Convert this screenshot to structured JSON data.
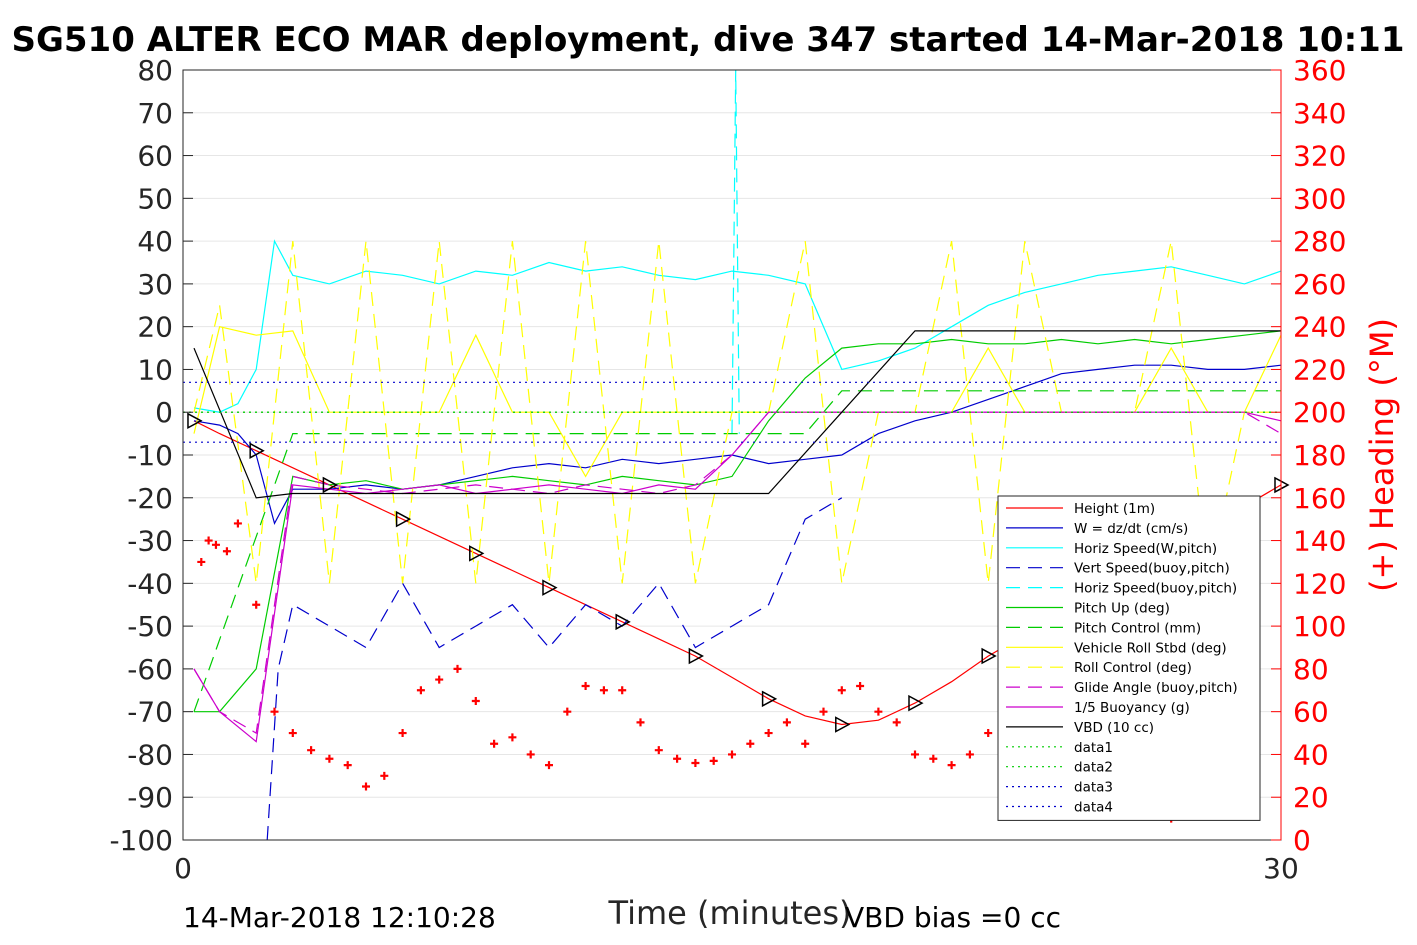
{
  "chart_data": {
    "type": "line",
    "title": "SG510 ALTER ECO MAR deployment, dive 347 started 14-Mar-2018 10:11",
    "xlabel": "Time (minutes)",
    "ylabel_right": "(+) Heading (°M)",
    "xlim": [
      0,
      30
    ],
    "ylim": [
      -100,
      80
    ],
    "ylim_right": [
      0,
      360
    ],
    "x_ticks": [
      "0",
      "30"
    ],
    "y_ticks": [
      "80",
      "70",
      "60",
      "50",
      "40",
      "30",
      "20",
      "10",
      "0",
      "-10",
      "-20",
      "-30",
      "-40",
      "-50",
      "-60",
      "-70",
      "-80",
      "-90",
      "-100"
    ],
    "y_ticks_right": [
      "360",
      "340",
      "320",
      "300",
      "280",
      "260",
      "240",
      "220",
      "200",
      "180",
      "160",
      "140",
      "120",
      "100",
      "80",
      "60",
      "40",
      "20",
      "0"
    ],
    "grid": true,
    "legend_position": "bottom-right",
    "footer_left": "14-Mar-2018 12:10:28",
    "footer_right": "VBD bias =0 cc",
    "colors": {
      "height": "#ff0000",
      "w": "#0000cc",
      "horiz": "#00ffff",
      "pitch": "#00cc00",
      "roll": "#ffff00",
      "glide": "#cc00cc",
      "vbd": "#000000",
      "heading": "#ff0000"
    },
    "series": [
      {
        "name": "Height (1m)",
        "color": "#ff0000",
        "style": "solid",
        "x": [
          0.3,
          1,
          2,
          3,
          4,
          5,
          6,
          7,
          8,
          9,
          10,
          11,
          12,
          13,
          14,
          15,
          16,
          17,
          18,
          19,
          20,
          21,
          22,
          23,
          24,
          25,
          26,
          27,
          28,
          29,
          30
        ],
        "y": [
          -2,
          -5,
          -9,
          -13,
          -17,
          -21,
          -25,
          -29,
          -33,
          -37,
          -41,
          -45,
          -49,
          -53,
          -57,
          -62,
          -67,
          -71,
          -73,
          -72,
          -68,
          -63,
          -57,
          -52,
          -47,
          -42,
          -37,
          -32,
          -27,
          -22,
          -17
        ]
      },
      {
        "name": "W = dz/dt (cm/s)",
        "color": "#0000cc",
        "style": "solid",
        "x": [
          0.3,
          1,
          1.5,
          2,
          2.5,
          3,
          4,
          5,
          6,
          7,
          8,
          9,
          10,
          11,
          12,
          13,
          14,
          15,
          16,
          17,
          18,
          19,
          20,
          21,
          22,
          23,
          24,
          25,
          26,
          27,
          28,
          29,
          30
        ],
        "y": [
          -2,
          -3,
          -5,
          -10,
          -26,
          -18,
          -18,
          -17,
          -18,
          -17,
          -15,
          -13,
          -12,
          -13,
          -11,
          -12,
          -11,
          -10,
          -12,
          -11,
          -10,
          -5,
          -2,
          0,
          3,
          6,
          9,
          10,
          11,
          11,
          10,
          10,
          11
        ]
      },
      {
        "name": "Horiz Speed(W,pitch)",
        "color": "#00ffff",
        "style": "solid",
        "x": [
          0.3,
          1,
          1.5,
          2,
          2.5,
          3,
          4,
          5,
          6,
          7,
          8,
          9,
          10,
          11,
          12,
          13,
          14,
          15,
          16,
          17,
          18,
          19,
          20,
          21,
          22,
          23,
          24,
          25,
          26,
          27,
          28,
          29,
          30
        ],
        "y": [
          1,
          0,
          2,
          10,
          40,
          32,
          30,
          33,
          32,
          30,
          33,
          32,
          35,
          33,
          34,
          32,
          31,
          33,
          32,
          30,
          10,
          12,
          15,
          20,
          25,
          28,
          30,
          32,
          33,
          34,
          32,
          30,
          33
        ]
      },
      {
        "name": "Vert Speed(buoy,pitch)",
        "color": "#0000cc",
        "style": "dashed",
        "x": [
          2.3,
          2.6,
          3,
          4,
          5,
          6,
          7,
          8,
          9,
          10,
          11,
          12,
          13,
          14,
          15,
          16,
          17,
          18
        ],
        "y": [
          -100,
          -60,
          -45,
          -50,
          -55,
          -40,
          -55,
          -50,
          -45,
          -55,
          -45,
          -50,
          -40,
          -55,
          -50,
          -45,
          -25,
          -20
        ]
      },
      {
        "name": "Horiz Speed(buoy,pitch)",
        "color": "#00ffff",
        "style": "dashed",
        "x": [
          15,
          15.1,
          15.2
        ],
        "y": [
          -5,
          80,
          -5
        ]
      },
      {
        "name": "Pitch Up (deg)",
        "color": "#00cc00",
        "style": "solid",
        "x": [
          0.3,
          1,
          2,
          3,
          4,
          5,
          6,
          7,
          8,
          9,
          10,
          11,
          12,
          13,
          14,
          15,
          16,
          17,
          18,
          19,
          20,
          21,
          22,
          23,
          24,
          25,
          26,
          27,
          28,
          29,
          30
        ],
        "y": [
          -70,
          -70,
          -60,
          -15,
          -17,
          -16,
          -18,
          -17,
          -16,
          -15,
          -16,
          -17,
          -15,
          -16,
          -17,
          -15,
          -2,
          8,
          15,
          16,
          16,
          17,
          16,
          16,
          17,
          16,
          17,
          16,
          17,
          18,
          19
        ]
      },
      {
        "name": "Pitch Control (mm)",
        "color": "#00cc00",
        "style": "dashed",
        "x": [
          0.3,
          3,
          10,
          17,
          18,
          30
        ],
        "y": [
          -70,
          -5,
          -5,
          -5,
          5,
          5
        ]
      },
      {
        "name": "Vehicle Roll Stbd (deg)",
        "color": "#ffff00",
        "style": "solid",
        "x": [
          0.3,
          1,
          2,
          3,
          4,
          5,
          6,
          7,
          8,
          9,
          10,
          11,
          12,
          13,
          14,
          15,
          16,
          17,
          18,
          19,
          20,
          21,
          22,
          23,
          24,
          25,
          26,
          27,
          28,
          29,
          30
        ],
        "y": [
          -5,
          20,
          18,
          19,
          0,
          0,
          0,
          0,
          18,
          0,
          0,
          -15,
          0,
          0,
          0,
          0,
          0,
          0,
          0,
          0,
          0,
          0,
          15,
          0,
          0,
          0,
          0,
          15,
          0,
          0,
          18
        ]
      },
      {
        "name": "Roll Control (deg)",
        "color": "#ffff00",
        "style": "dashed",
        "x": [
          0.3,
          1,
          2,
          3,
          4,
          5,
          6,
          7,
          8,
          9,
          10,
          11,
          12,
          13,
          14,
          15,
          16,
          17,
          18,
          19,
          20,
          21,
          22,
          23,
          24,
          25,
          26,
          27,
          28,
          29,
          30
        ],
        "y": [
          0,
          25,
          -40,
          40,
          -40,
          40,
          -40,
          40,
          -40,
          40,
          -40,
          40,
          -40,
          40,
          -40,
          0,
          0,
          40,
          -40,
          0,
          0,
          40,
          -40,
          40,
          0,
          0,
          0,
          40,
          -40,
          0,
          0
        ]
      },
      {
        "name": "Glide Angle (buoy,pitch)",
        "color": "#cc00cc",
        "style": "dashed",
        "x": [
          0.3,
          1,
          2,
          3,
          4,
          5,
          6,
          7,
          8,
          9,
          10,
          11,
          12,
          13,
          14,
          15,
          16,
          17,
          18,
          19,
          20,
          21,
          22,
          23,
          24,
          25,
          26,
          27,
          28,
          29,
          30
        ],
        "y": [
          -60,
          -70,
          -75,
          -15,
          -17,
          -18,
          -19,
          -18,
          -17,
          -18,
          -19,
          -17,
          -18,
          -19,
          -17,
          -10,
          0,
          0,
          0,
          0,
          0,
          0,
          0,
          0,
          0,
          0,
          0,
          0,
          0,
          0,
          -5
        ]
      },
      {
        "name": "1/5 Buoyancy (g)",
        "color": "#cc00cc",
        "style": "solid",
        "x": [
          0.3,
          1,
          2,
          3,
          4,
          5,
          6,
          7,
          8,
          9,
          10,
          11,
          12,
          13,
          14,
          15,
          16,
          17,
          18,
          19,
          20,
          21,
          22,
          23,
          24,
          25,
          26,
          27,
          28,
          29,
          30
        ],
        "y": [
          -60,
          -70,
          -77,
          -17,
          -18,
          -19,
          -18,
          -17,
          -19,
          -18,
          -17,
          -18,
          -19,
          -17,
          -18,
          -10,
          0,
          0,
          0,
          0,
          0,
          0,
          0,
          0,
          0,
          0,
          0,
          0,
          0,
          0,
          -2
        ]
      },
      {
        "name": "VBD (10 cc)",
        "color": "#000000",
        "style": "solid",
        "x": [
          0.3,
          2,
          3,
          10,
          16,
          18,
          20,
          30
        ],
        "y": [
          15,
          -20,
          -19,
          -19,
          -19,
          0,
          19,
          19
        ]
      },
      {
        "name": "data1",
        "color": "#00cc00",
        "style": "dotted",
        "x": [
          0,
          30
        ],
        "y": [
          0,
          0
        ]
      },
      {
        "name": "data2",
        "color": "#00cc00",
        "style": "dotted",
        "x": [
          0,
          30
        ],
        "y": [
          0,
          0
        ]
      },
      {
        "name": "data3",
        "color": "#0000cc",
        "style": "dotted",
        "x": [
          0,
          30
        ],
        "y": [
          7,
          7
        ]
      },
      {
        "name": "data4",
        "color": "#0000cc",
        "style": "dotted",
        "x": [
          0,
          30
        ],
        "y": [
          -7,
          -7
        ]
      },
      {
        "name": "Heading",
        "color": "#ff0000",
        "style": "plus-markers",
        "axis": "right",
        "x": [
          0.5,
          0.7,
          0.9,
          1.2,
          1.5,
          2,
          2.5,
          3,
          3.5,
          4,
          4.5,
          5,
          5.5,
          6,
          6.5,
          7,
          7.5,
          8,
          8.5,
          9,
          9.5,
          10,
          10.5,
          11,
          11.5,
          12,
          12.5,
          13,
          13.5,
          14,
          14.5,
          15,
          15.5,
          16,
          16.5,
          17,
          17.5,
          18,
          18.5,
          19,
          19.5,
          20,
          20.5,
          21,
          21.5,
          22,
          22.5,
          23,
          23.5,
          24,
          24.5,
          25,
          25.5,
          26,
          26.5,
          27,
          27.5,
          28,
          28.5,
          29
        ],
        "y": [
          130,
          140,
          138,
          135,
          148,
          110,
          60,
          50,
          42,
          38,
          35,
          25,
          30,
          50,
          70,
          75,
          80,
          65,
          45,
          48,
          40,
          35,
          60,
          72,
          70,
          70,
          55,
          42,
          38,
          36,
          37,
          40,
          45,
          50,
          55,
          45,
          60,
          70,
          72,
          60,
          55,
          40,
          38,
          35,
          40,
          50,
          65,
          70,
          55,
          45,
          42,
          45,
          40,
          30,
          20,
          10,
          15,
          20,
          25,
          30
        ]
      }
    ]
  }
}
